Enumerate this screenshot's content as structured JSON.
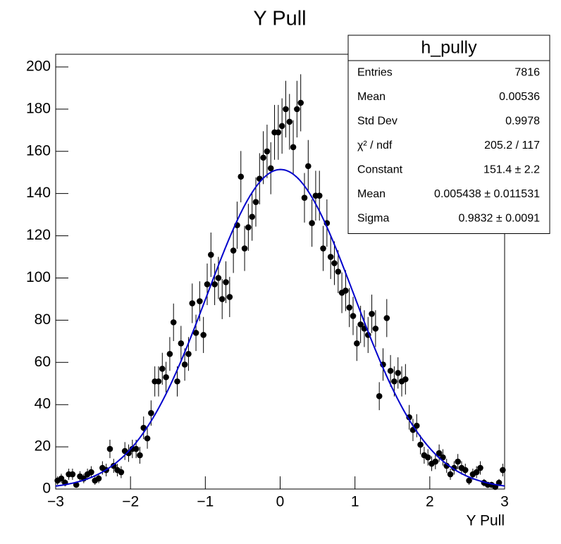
{
  "chart_data": {
    "type": "histogram",
    "title": "Y Pull",
    "x_label": "Y Pull",
    "bins": [
      -3,
      -2.95,
      -2.9,
      -2.85,
      -2.8,
      -2.75,
      -2.7,
      -2.65,
      -2.6,
      -2.55,
      -2.5,
      -2.45,
      -2.4,
      -2.35,
      -2.3,
      -2.25,
      -2.2,
      -2.15,
      -2.1,
      -2.05,
      -2,
      -1.95,
      -1.9,
      -1.85,
      -1.8,
      -1.75,
      -1.7,
      -1.65,
      -1.6,
      -1.55,
      -1.5,
      -1.45,
      -1.4,
      -1.35,
      -1.3,
      -1.25,
      -1.2,
      -1.15,
      -1.1,
      -1.05,
      -1,
      -0.95,
      -0.9,
      -0.85,
      -0.8,
      -0.75,
      -0.7,
      -0.65,
      -0.6,
      -0.55,
      -0.5,
      -0.45,
      -0.4,
      -0.35,
      -0.3,
      -0.25,
      -0.2,
      -0.15,
      -0.1,
      -0.05,
      0,
      0.05,
      0.1,
      0.15,
      0.2,
      0.25,
      0.3,
      0.35,
      0.4,
      0.45,
      0.5,
      0.55,
      0.6,
      0.65,
      0.7,
      0.75,
      0.8,
      0.85,
      0.9,
      0.95,
      1,
      1.05,
      1.1,
      1.15,
      1.2,
      1.25,
      1.3,
      1.35,
      1.4,
      1.45,
      1.5,
      1.55,
      1.6,
      1.65,
      1.7,
      1.75,
      1.8,
      1.85,
      1.9,
      1.95,
      2,
      2.05,
      2.1,
      2.15,
      2.2,
      2.25,
      2.3,
      2.35,
      2.4,
      2.45,
      2.5,
      2.55,
      2.6,
      2.65,
      2.7,
      2.75,
      2.8,
      2.85,
      2.9,
      2.95,
      3
    ],
    "values": [
      4,
      5,
      3,
      7,
      7,
      2,
      6,
      5,
      7,
      8,
      4,
      5,
      10,
      9,
      19,
      11,
      9,
      8,
      18,
      17,
      19,
      19,
      16,
      29,
      24,
      36,
      51,
      51,
      57,
      53,
      64,
      79,
      51,
      69,
      59,
      64,
      88,
      74,
      89,
      73,
      97,
      111,
      97,
      100,
      90,
      98,
      91,
      113,
      125,
      148,
      114,
      124,
      129,
      136,
      147,
      157,
      160,
      152,
      169,
      169,
      172,
      180,
      174,
      162,
      180,
      183,
      138,
      153,
      126,
      139,
      139,
      114,
      126,
      110,
      107,
      103,
      93,
      94,
      86,
      82,
      69,
      78,
      76,
      73,
      83,
      76,
      44,
      59,
      81,
      56,
      51,
      55,
      51,
      52,
      34,
      28,
      30,
      21,
      16,
      15,
      12,
      13,
      17,
      15,
      11,
      7,
      10,
      13,
      10,
      9,
      4,
      7,
      8,
      10,
      3,
      2,
      2,
      1,
      3,
      9
    ],
    "color": "#000000",
    "fit": {
      "function": "gaus",
      "constant": 151.4,
      "mean": 0.005438,
      "sigma": 0.9832,
      "color": "#0000cc"
    },
    "xlim": [
      -3,
      3
    ],
    "xticks": [
      {
        "value": -3,
        "label": "−3"
      },
      {
        "value": -2,
        "label": "−2"
      },
      {
        "value": -1,
        "label": "−1"
      },
      0,
      1,
      2,
      3
    ],
    "ylim": [
      0,
      206
    ],
    "yticks": [
      0,
      20,
      40,
      60,
      80,
      100,
      120,
      140,
      160,
      180,
      200
    ],
    "stats": {
      "title": "h_pully",
      "rows": [
        [
          "Entries",
          "7816"
        ],
        [
          "Mean",
          "0.00536"
        ],
        [
          "Std Dev",
          "0.9978"
        ],
        [
          "χ² / ndf",
          "205.2 / 117"
        ],
        [
          "Constant",
          "151.4 ± 2.2"
        ],
        [
          "Mean",
          "0.005438 ± 0.011531"
        ],
        [
          "Sigma",
          "0.9832 ± 0.0091"
        ]
      ]
    }
  }
}
